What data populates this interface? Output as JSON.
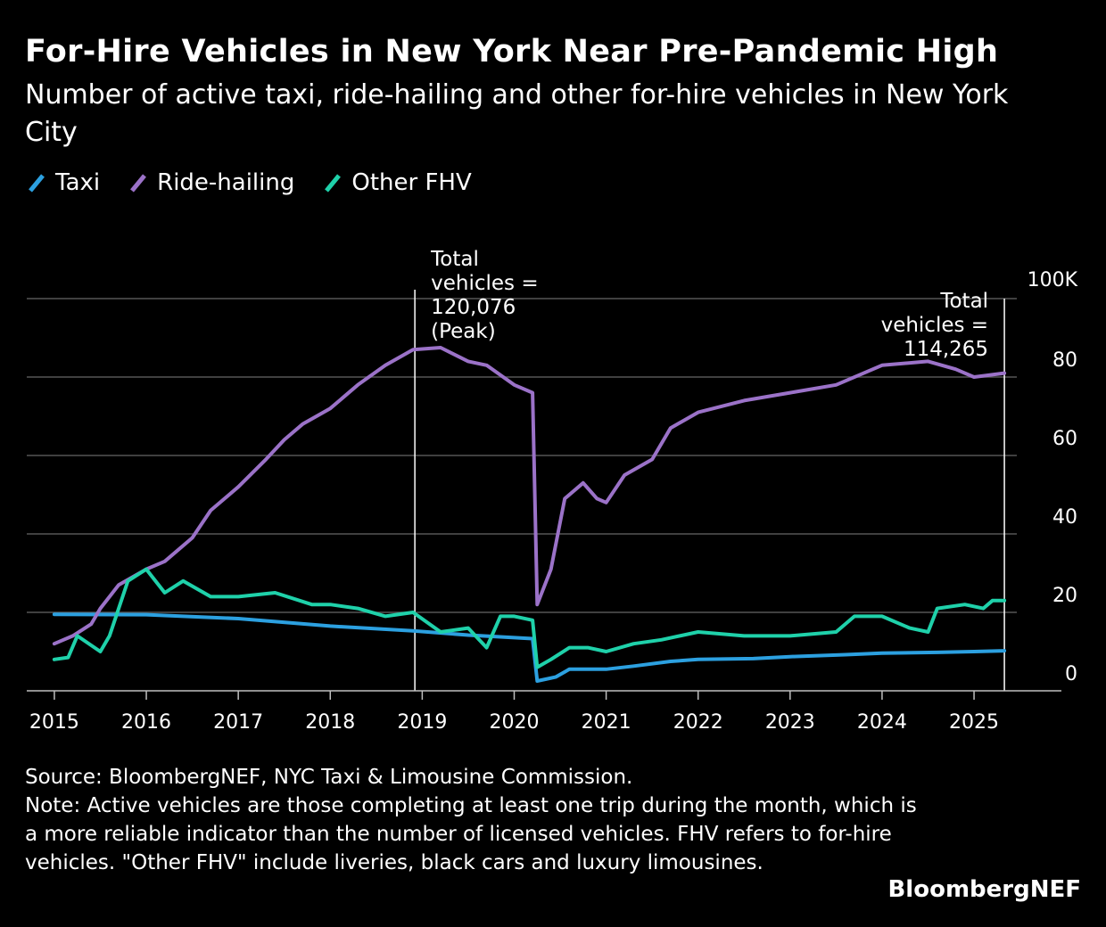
{
  "title": "For-Hire Vehicles in New York Near Pre-Pandemic High",
  "subtitle": "Number of active taxi, ride-hailing and other for-hire vehicles in New York City",
  "legend": [
    {
      "label": "Taxi",
      "color": "#2ca0e0"
    },
    {
      "label": "Ride-hailing",
      "color": "#9b72c8"
    },
    {
      "label": "Other FHV",
      "color": "#1fd1aa"
    }
  ],
  "source": "Source: BloombergNEF, NYC Taxi & Limousine Commission.",
  "note": "Note: Active vehicles are those completing at least one trip during the month, which is a more reliable indicator than the number of licensed vehicles. FHV refers to for-hire vehicles. \"Other FHV\" include liveries, black cars and luxury limousines.",
  "brand": "BloombergNEF",
  "chart_data": {
    "type": "line",
    "x_unit": "year",
    "xlim": [
      2014.7,
      2025.95
    ],
    "ylim": [
      0,
      100
    ],
    "ytick_values": [
      0,
      20,
      40,
      60,
      80,
      100
    ],
    "ytick_labels": [
      "0",
      "20",
      "40",
      "60",
      "80",
      "100K"
    ],
    "xticks": [
      2015,
      2016,
      2017,
      2018,
      2019,
      2020,
      2021,
      2022,
      2023,
      2024,
      2025
    ],
    "grid": true,
    "annotations": [
      {
        "x": 2018.92,
        "lines": [
          "Total",
          "vehicles =",
          "120,076",
          "(Peak)"
        ],
        "align": "left"
      },
      {
        "x": 2025.33,
        "lines": [
          "Total",
          "vehicles =",
          "114,265"
        ],
        "align": "right"
      }
    ],
    "series": [
      {
        "name": "Taxi",
        "color": "#2ca0e0",
        "x": [
          2015.0,
          2016.0,
          2017.0,
          2018.0,
          2018.9,
          2019.5,
          2020.2,
          2020.25,
          2020.45,
          2020.6,
          2021.0,
          2021.3,
          2021.7,
          2022.0,
          2022.6,
          2023.0,
          2023.6,
          2024.0,
          2024.6,
          2025.0,
          2025.33
        ],
        "values": [
          19.5,
          19.4,
          18.4,
          16.5,
          15.3,
          14.2,
          13.3,
          2.5,
          3.5,
          5.5,
          5.5,
          6.3,
          7.5,
          8.0,
          8.2,
          8.7,
          9.2,
          9.6,
          9.8,
          10.0,
          10.2
        ]
      },
      {
        "name": "Ride-hailing",
        "color": "#9b72c8",
        "x": [
          2015.0,
          2015.2,
          2015.4,
          2015.5,
          2015.7,
          2016.0,
          2016.2,
          2016.5,
          2016.7,
          2017.0,
          2017.3,
          2017.5,
          2017.7,
          2018.0,
          2018.3,
          2018.6,
          2018.9,
          2019.2,
          2019.5,
          2019.7,
          2020.0,
          2020.2,
          2020.25,
          2020.4,
          2020.55,
          2020.75,
          2020.9,
          2021.0,
          2021.2,
          2021.5,
          2021.7,
          2022.0,
          2022.5,
          2023.0,
          2023.5,
          2024.0,
          2024.5,
          2024.8,
          2025.0,
          2025.33
        ],
        "values": [
          12,
          14,
          17,
          21,
          27,
          31,
          33,
          39,
          46,
          52,
          59,
          64,
          68,
          72,
          78,
          83,
          87,
          87.5,
          84,
          83,
          78,
          76,
          22,
          31,
          49,
          53,
          49,
          48,
          55,
          59,
          67,
          71,
          74,
          76,
          78,
          83,
          84,
          82,
          80,
          81
        ]
      },
      {
        "name": "Other FHV",
        "color": "#1fd1aa",
        "x": [
          2015.0,
          2015.15,
          2015.25,
          2015.5,
          2015.6,
          2015.8,
          2016.0,
          2016.2,
          2016.4,
          2016.7,
          2017.0,
          2017.4,
          2017.8,
          2018.0,
          2018.3,
          2018.6,
          2018.9,
          2019.2,
          2019.5,
          2019.7,
          2019.85,
          2020.0,
          2020.2,
          2020.25,
          2020.4,
          2020.6,
          2020.8,
          2021.0,
          2021.3,
          2021.6,
          2022.0,
          2022.5,
          2023.0,
          2023.5,
          2023.7,
          2024.0,
          2024.3,
          2024.5,
          2024.6,
          2024.9,
          2025.1,
          2025.2,
          2025.33
        ],
        "values": [
          8,
          8.5,
          14,
          10,
          14,
          28,
          31,
          25,
          28,
          24,
          24,
          25,
          22,
          22,
          21,
          19,
          20,
          15,
          16,
          11,
          19,
          19,
          18,
          6,
          8,
          11,
          11,
          10,
          12,
          13,
          15,
          14,
          14,
          15,
          19,
          19,
          16,
          15,
          21,
          22,
          21,
          23,
          23
        ]
      }
    ]
  }
}
